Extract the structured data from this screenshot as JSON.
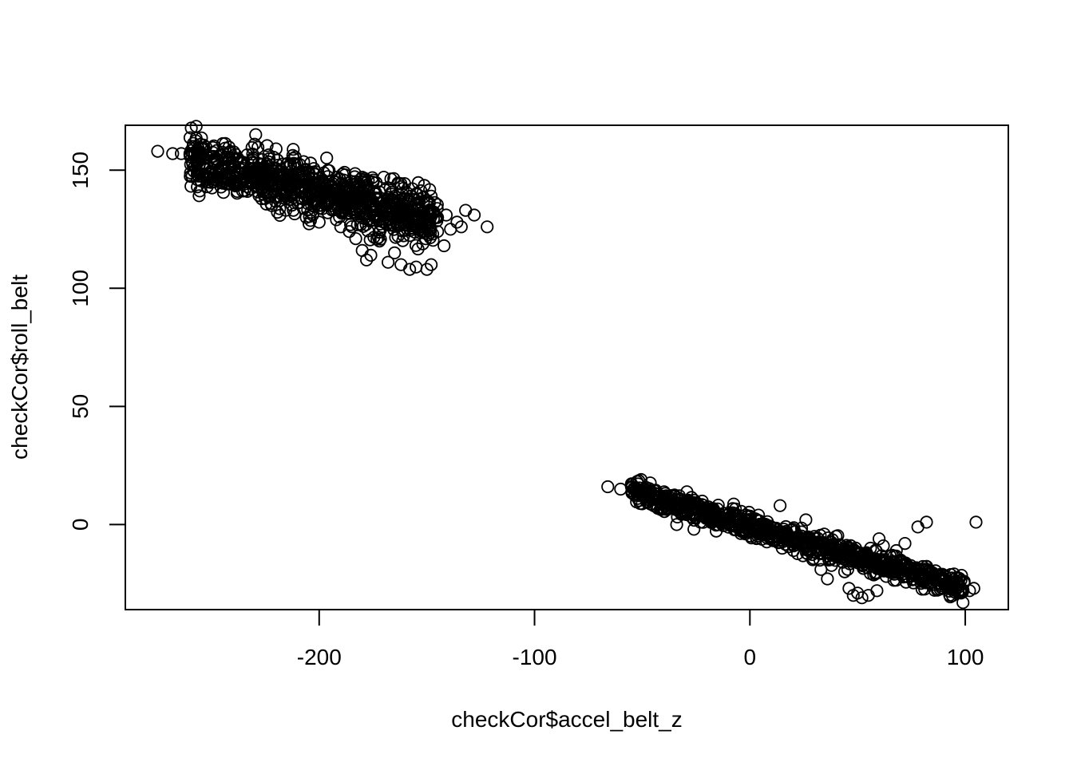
{
  "chart_data": {
    "type": "scatter",
    "title": "",
    "xlabel": "checkCor$accel_belt_z",
    "ylabel": "checkCor$roll_belt",
    "xlim": [
      -290,
      120
    ],
    "ylim": [
      -36,
      169
    ],
    "xticks": [
      -200,
      -100,
      0,
      100
    ],
    "yticks": [
      0,
      50,
      100,
      150
    ],
    "xtick_labels": [
      "-200",
      "-100",
      "0",
      "100"
    ],
    "ytick_labels": [
      "0",
      "50",
      "100",
      "150"
    ],
    "grid": false,
    "legend": "none",
    "marker": "open-circle",
    "marker_color": "#000000",
    "clusters": [
      {
        "name": "",
        "points": [
          [
            -275,
            158
          ],
          [
            -268,
            157
          ],
          [
            -264,
            157
          ],
          [
            -260,
            157
          ],
          [
            -256,
            156
          ],
          [
            -252,
            146
          ],
          [
            -252,
            143
          ],
          [
            -249,
            145
          ],
          [
            -245,
            150
          ],
          [
            -243,
            146
          ],
          [
            -240,
            148
          ],
          [
            -238,
            141
          ],
          [
            -236,
            151
          ],
          [
            -232,
            145
          ],
          [
            -228,
            149
          ],
          [
            -225,
            138
          ],
          [
            -222,
            135
          ],
          [
            -220,
            142
          ],
          [
            -216,
            139
          ],
          [
            -212,
            133
          ],
          [
            -210,
            136
          ],
          [
            -206,
            130
          ],
          [
            -203,
            131
          ],
          [
            -200,
            128
          ],
          [
            -196,
            132
          ],
          [
            -192,
            129
          ],
          [
            -190,
            126
          ],
          [
            -186,
            124
          ],
          [
            -183,
            121
          ],
          [
            -180,
            116
          ],
          [
            -178,
            112
          ],
          [
            -176,
            114
          ],
          [
            -172,
            120
          ],
          [
            -168,
            111
          ],
          [
            -165,
            115
          ],
          [
            -162,
            110
          ],
          [
            -158,
            108
          ],
          [
            -155,
            109
          ],
          [
            -150,
            108
          ],
          [
            -148,
            110
          ],
          [
            -145,
            124
          ],
          [
            -142,
            118
          ],
          [
            -139,
            125
          ],
          [
            -136,
            128
          ],
          [
            -132,
            133
          ],
          [
            -128,
            131
          ],
          [
            -122,
            126
          ],
          [
            -230,
            161
          ],
          [
            -220,
            159
          ],
          [
            -212,
            155
          ],
          [
            -204,
            153
          ],
          [
            -196,
            150
          ],
          [
            -188,
            148
          ],
          [
            -180,
            147
          ],
          [
            -170,
            147
          ],
          [
            -162,
            143
          ],
          [
            -155,
            140
          ],
          [
            -148,
            139
          ],
          [
            -141,
            131
          ],
          [
            -134,
            126
          ]
        ],
        "dense_region": {
          "x_range": [
            -260,
            -145
          ],
          "y_center_at_x_min": 155,
          "y_center_at_x_max": 128,
          "y_spread": 9
        }
      },
      {
        "name": "",
        "points": [
          [
            -66,
            16
          ],
          [
            -60,
            15
          ],
          [
            -55,
            16
          ],
          [
            -52,
            14
          ],
          [
            -46,
            14
          ],
          [
            -40,
            12
          ],
          [
            -34,
            0
          ],
          [
            -30,
            9
          ],
          [
            -26,
            -2
          ],
          [
            -20,
            7
          ],
          [
            -14,
            1
          ],
          [
            -8,
            5
          ],
          [
            -3,
            0
          ],
          [
            4,
            4
          ],
          [
            10,
            -3
          ],
          [
            14,
            8
          ],
          [
            15,
            -10
          ],
          [
            20,
            -2
          ],
          [
            26,
            2
          ],
          [
            30,
            -5
          ],
          [
            33,
            -19
          ],
          [
            36,
            -23
          ],
          [
            40,
            -5
          ],
          [
            44,
            -20
          ],
          [
            46,
            -27
          ],
          [
            48,
            -30
          ],
          [
            50,
            -29
          ],
          [
            52,
            -31
          ],
          [
            55,
            -30
          ],
          [
            59,
            -28
          ],
          [
            56,
            -10
          ],
          [
            60,
            -6
          ],
          [
            62,
            -9
          ],
          [
            66,
            -13
          ],
          [
            68,
            -11
          ],
          [
            72,
            -8
          ],
          [
            72,
            -17
          ],
          [
            75,
            -20
          ],
          [
            78,
            -1
          ],
          [
            82,
            1
          ],
          [
            84,
            -20
          ],
          [
            88,
            -22
          ],
          [
            90,
            -24
          ],
          [
            94,
            -26
          ],
          [
            98,
            -29
          ],
          [
            102,
            -28
          ],
          [
            104,
            -27
          ],
          [
            105,
            1
          ],
          [
            64,
            -19
          ],
          [
            70,
            -15
          ]
        ],
        "dense_region": {
          "x_range": [
            -55,
            100
          ],
          "y_center_at_x_min": 14,
          "y_center_at_x_max": -27,
          "y_spread": 4
        }
      }
    ]
  }
}
